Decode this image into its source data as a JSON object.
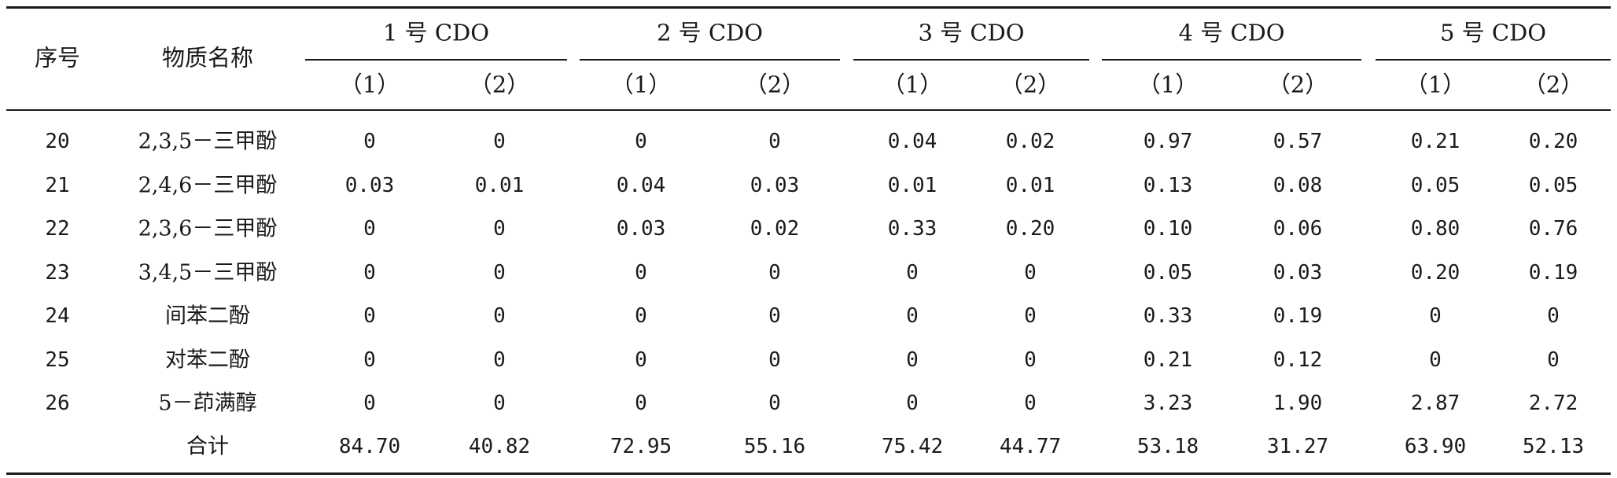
{
  "table": {
    "header": {
      "index_label": "序号",
      "name_label": "物质名称",
      "groups": [
        "1 号 CDO",
        "2 号 CDO",
        "3 号 CDO",
        "4 号 CDO",
        "5 号 CDO"
      ],
      "subs": [
        "（1）",
        "（2）"
      ]
    },
    "rows": [
      {
        "index": "20",
        "name": "2,3,5－三甲酚",
        "values": [
          "0",
          "0",
          "0",
          "0",
          "0.04",
          "0.02",
          "0.97",
          "0.57",
          "0.21",
          "0.20"
        ]
      },
      {
        "index": "21",
        "name": "2,4,6－三甲酚",
        "values": [
          "0.03",
          "0.01",
          "0.04",
          "0.03",
          "0.01",
          "0.01",
          "0.13",
          "0.08",
          "0.05",
          "0.05"
        ]
      },
      {
        "index": "22",
        "name": "2,3,6－三甲酚",
        "values": [
          "0",
          "0",
          "0.03",
          "0.02",
          "0.33",
          "0.20",
          "0.10",
          "0.06",
          "0.80",
          "0.76"
        ]
      },
      {
        "index": "23",
        "name": "3,4,5－三甲酚",
        "values": [
          "0",
          "0",
          "0",
          "0",
          "0",
          "0",
          "0.05",
          "0.03",
          "0.20",
          "0.19"
        ]
      },
      {
        "index": "24",
        "name": "间苯二酚",
        "values": [
          "0",
          "0",
          "0",
          "0",
          "0",
          "0",
          "0.33",
          "0.19",
          "0",
          "0"
        ]
      },
      {
        "index": "25",
        "name": "对苯二酚",
        "values": [
          "0",
          "0",
          "0",
          "0",
          "0",
          "0",
          "0.21",
          "0.12",
          "0",
          "0"
        ]
      },
      {
        "index": "26",
        "name": "5－茚满醇",
        "values": [
          "0",
          "0",
          "0",
          "0",
          "0",
          "0",
          "3.23",
          "1.90",
          "2.87",
          "2.72"
        ]
      },
      {
        "index": "",
        "name": "合计",
        "values": [
          "84.70",
          "40.82",
          "72.95",
          "55.16",
          "75.42",
          "44.77",
          "53.18",
          "31.27",
          "63.90",
          "52.13"
        ]
      }
    ]
  }
}
